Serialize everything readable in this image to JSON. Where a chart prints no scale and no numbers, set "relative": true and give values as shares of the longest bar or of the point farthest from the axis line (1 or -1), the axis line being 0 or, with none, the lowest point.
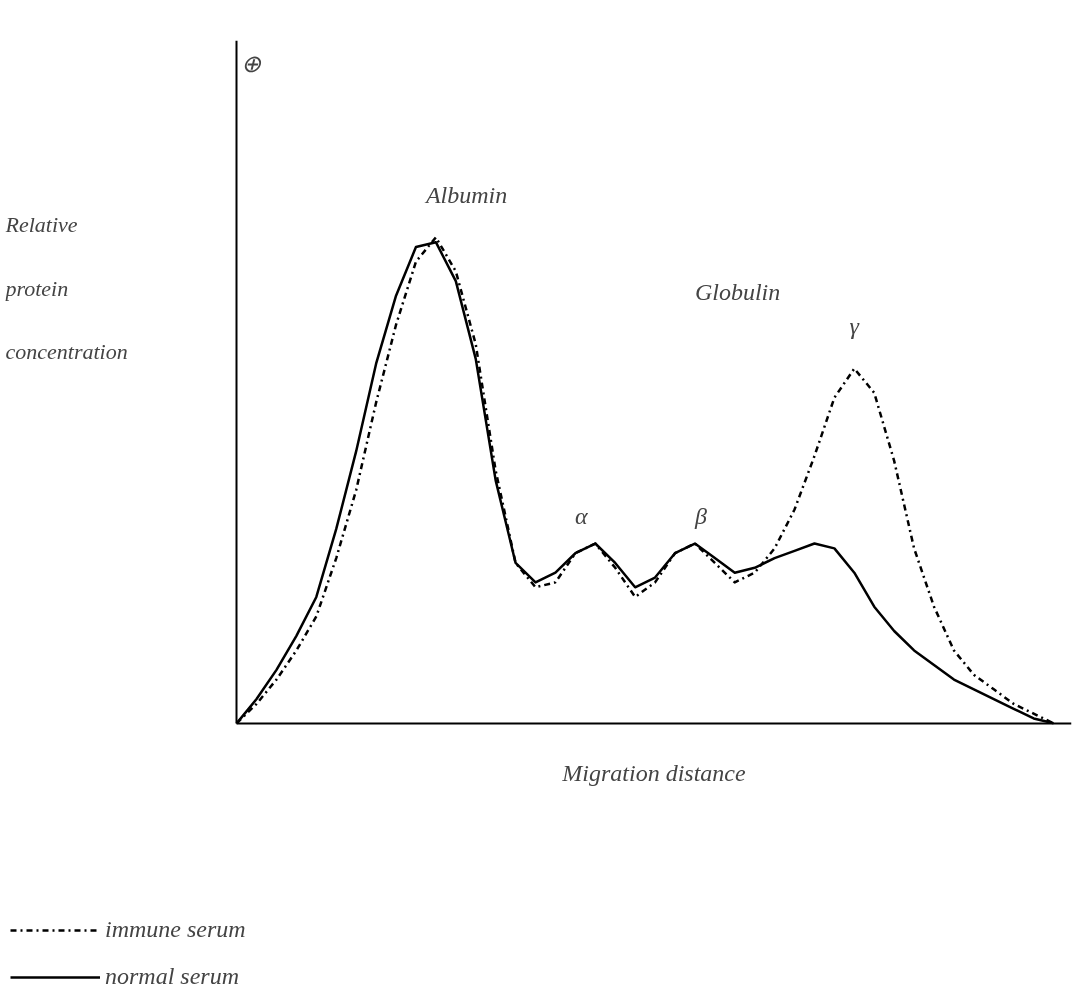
{
  "chart_data": {
    "type": "line",
    "relative": true,
    "xlabel": "Migration distance",
    "ylabel": "Relative protein concentration",
    "categories": [
      null,
      null,
      null,
      null,
      null,
      null,
      null,
      null,
      null,
      null,
      null,
      null,
      null,
      null,
      null,
      null,
      null,
      null,
      null,
      null,
      null,
      null,
      null,
      null,
      null,
      null,
      null,
      null,
      null,
      null,
      null,
      null,
      null,
      null,
      null,
      null,
      null,
      null,
      null,
      null,
      null,
      null
    ],
    "series": [
      {
        "name": "immune serum",
        "color": "#000000",
        "line_style": "dashdot",
        "values": [
          0,
          0.04,
          0.09,
          0.15,
          0.22,
          0.34,
          0.48,
          0.66,
          0.82,
          0.95,
          1.0,
          0.93,
          0.78,
          0.52,
          0.33,
          0.28,
          0.29,
          0.35,
          0.37,
          0.32,
          0.26,
          0.29,
          0.35,
          0.37,
          0.33,
          0.29,
          0.31,
          0.36,
          0.44,
          0.55,
          0.67,
          0.73,
          0.68,
          0.54,
          0.36,
          0.24,
          0.15,
          0.1,
          0.07,
          0.04,
          0.02,
          0
        ]
      },
      {
        "name": "normal serum",
        "color": "#000000",
        "line_style": "solid",
        "values": [
          0,
          0.05,
          0.11,
          0.18,
          0.26,
          0.4,
          0.56,
          0.74,
          0.88,
          0.98,
          0.99,
          0.91,
          0.75,
          0.5,
          0.33,
          0.29,
          0.31,
          0.35,
          0.37,
          0.33,
          0.28,
          0.3,
          0.35,
          0.37,
          0.34,
          0.31,
          0.32,
          0.34,
          0.355,
          0.37,
          0.36,
          0.31,
          0.24,
          0.19,
          0.15,
          0.12,
          0.09,
          0.07,
          0.05,
          0.03,
          0.01,
          0
        ]
      }
    ],
    "legend": "bottom left",
    "annotations": [
      "⊕",
      "Albumin",
      "Globulin",
      "α",
      "β",
      "γ"
    ]
  }
}
